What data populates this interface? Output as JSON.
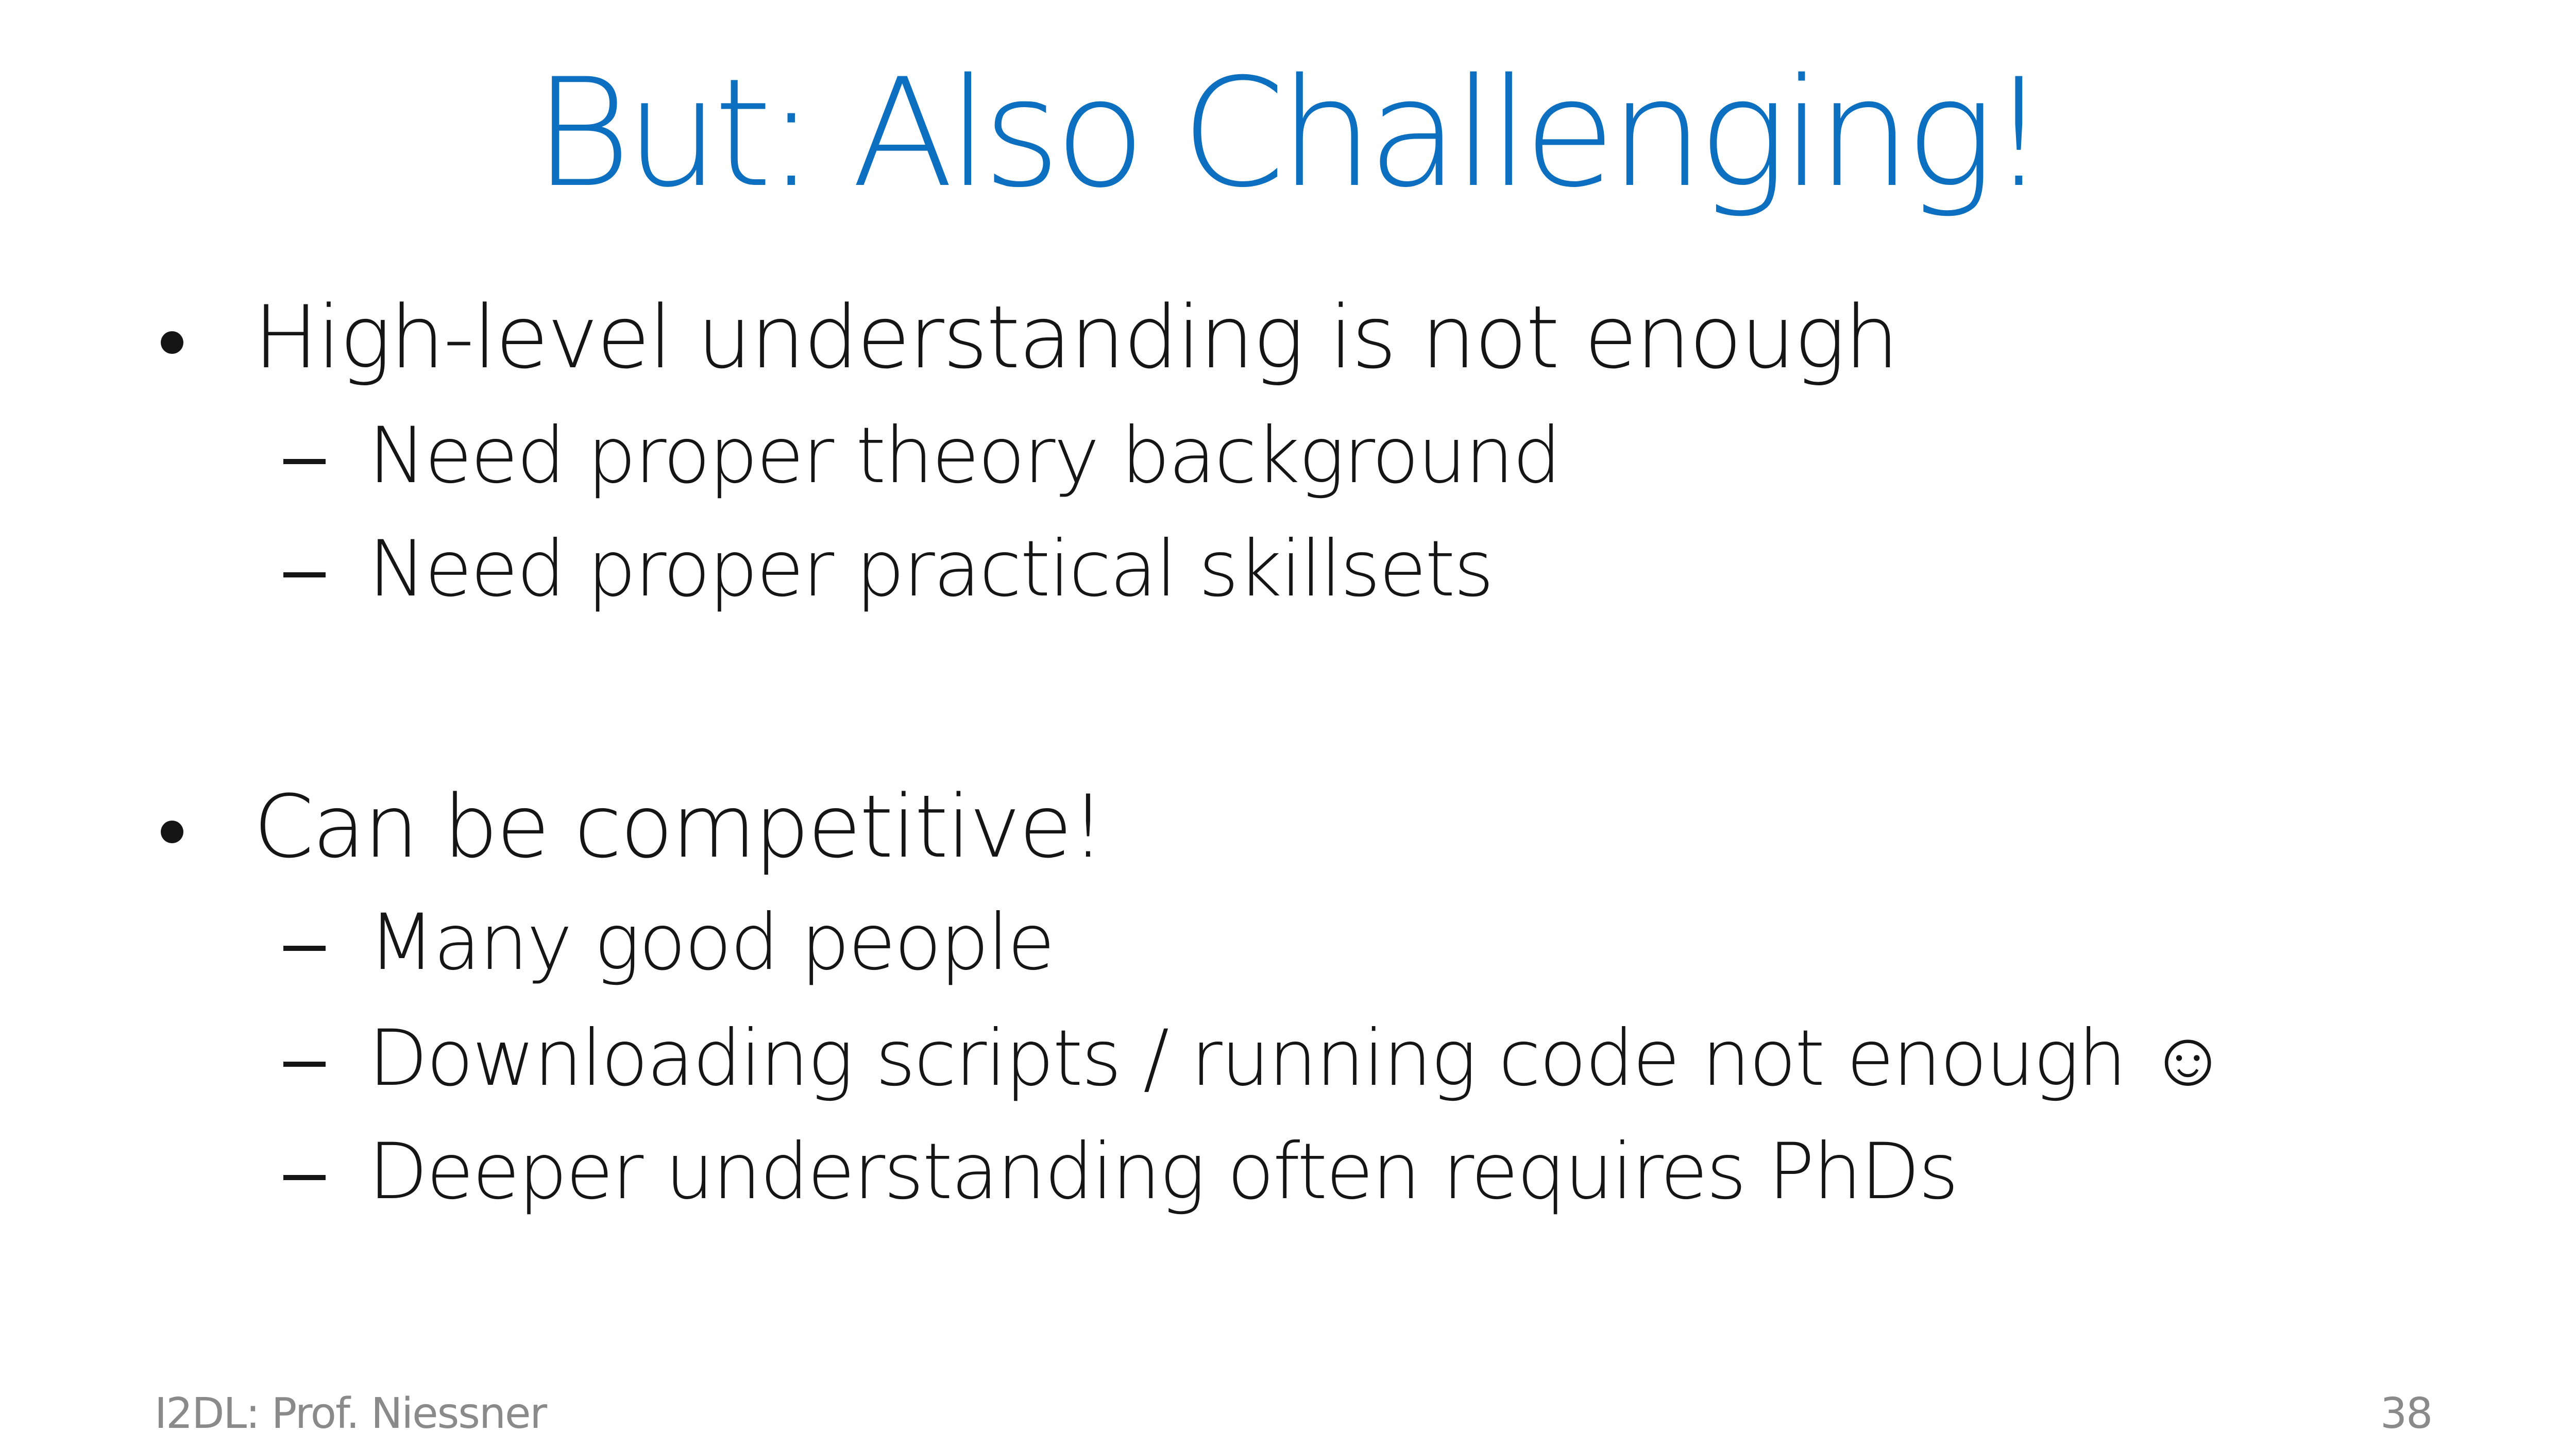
{
  "slide": {
    "title": "But: Also Challenging!",
    "bullets": [
      {
        "text": "High-level understanding is not enough",
        "subs": [
          "Need proper theory background",
          "Need proper practical skillsets"
        ]
      },
      {
        "text": "Can be competitive!",
        "subs": [
          "Many good people",
          "Downloading scripts / running code not enough ☺",
          "Deeper understanding often requires PhDs"
        ]
      }
    ],
    "footer": {
      "left": "I2DL: Prof. Niessner",
      "page_number": "38"
    }
  },
  "colors": {
    "title": "#0d6fbf",
    "body": "#151515",
    "footer": "#8a8a8a"
  }
}
